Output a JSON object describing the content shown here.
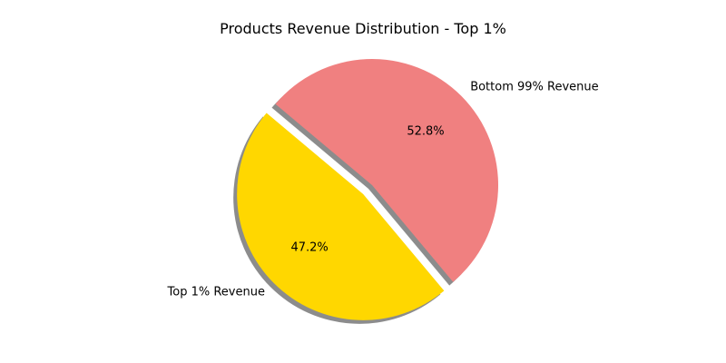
{
  "chart_data": {
    "type": "pie",
    "title": "Products Revenue Distribution - Top 1%",
    "slices": [
      {
        "label": "Top 1% Revenue",
        "value": 47.2,
        "pct_label": "47.2%",
        "color": "#FFD700",
        "exploded": true
      },
      {
        "label": "Bottom 99% Revenue",
        "value": 52.8,
        "pct_label": "52.8%",
        "color": "#F08080",
        "exploded": false
      }
    ],
    "shadow": true,
    "start_angle_deg": 140,
    "explode_fraction": 0.1
  }
}
